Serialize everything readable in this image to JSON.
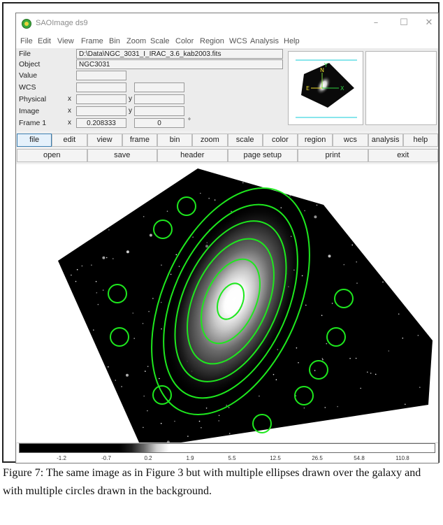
{
  "window": {
    "title": "SAOImage ds9",
    "controls": {
      "minimize": "–",
      "maximize": "☐",
      "close": "✕"
    }
  },
  "menubar": [
    "File",
    "Edit",
    "View",
    "Frame",
    "Bin",
    "Zoom",
    "Scale",
    "Color",
    "Region",
    "WCS",
    "Analysis",
    "Help"
  ],
  "info_panel": {
    "file_label": "File",
    "file_value": "D:\\Data\\NGC_3031_I_IRAC_3.6_kab2003.fits",
    "object_label": "Object",
    "object_value": "NGC3031",
    "value_label": "Value",
    "wcs_label": "WCS",
    "physical_label": "Physical",
    "image_label": "Image",
    "frame_label": "Frame 1",
    "x_label": "x",
    "y_label": "y",
    "zoom_value": "0.208333",
    "angle_value": "0",
    "degree_symbol": "°"
  },
  "panner": {
    "north_label": "N",
    "east_label": "E",
    "y_label": "Y",
    "x_label": "X"
  },
  "buttonbar_main": [
    "file",
    "edit",
    "view",
    "frame",
    "bin",
    "zoom",
    "scale",
    "color",
    "region",
    "wcs",
    "analysis",
    "help"
  ],
  "buttonbar_main_active": "file",
  "buttonbar_sub": [
    "open",
    "save",
    "header",
    "page setup",
    "print",
    "exit"
  ],
  "colorbar": {
    "ticks": [
      "-1.2",
      "-0.7",
      "0.2",
      "1.9",
      "5.5",
      "12.5",
      "26.5",
      "54.8",
      "110.8"
    ]
  },
  "region_color": "#1ee81e",
  "caption": "Figure 7: The same image as in Figure 3 but with multiple ellipses drawn over the galaxy and with multiple circles drawn in the background."
}
